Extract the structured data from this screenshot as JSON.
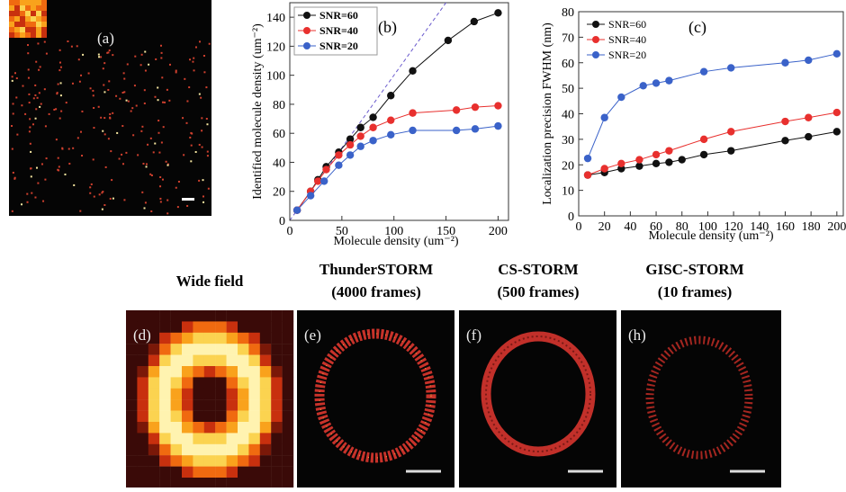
{
  "chart_data": [
    {
      "type": "line",
      "annotation": "(b)",
      "x_label": "Molecule density (um⁻²)",
      "y_label": "Identified molecule density (um⁻²)",
      "xlim": [
        0,
        210
      ],
      "xticks": [
        0,
        50,
        100,
        150,
        200
      ],
      "ylim": [
        0,
        150
      ],
      "yticks": [
        0,
        20,
        40,
        60,
        80,
        100,
        120,
        140
      ],
      "legend": "upper left",
      "legend_frame": true,
      "legend_bold": true,
      "series": [
        {
          "name": "SNR=60",
          "color": "#111111",
          "x": [
            7,
            20,
            27,
            35,
            47,
            58,
            68,
            80,
            97,
            118,
            152,
            177,
            200
          ],
          "values": [
            7,
            20,
            28,
            37,
            47,
            56,
            64,
            71,
            86,
            103,
            124,
            137,
            143
          ]
        },
        {
          "name": "SNR=40",
          "color": "#e8302e",
          "x": [
            7,
            20,
            27,
            35,
            47,
            58,
            68,
            80,
            97,
            118,
            160,
            178,
            200
          ],
          "values": [
            7,
            20,
            27,
            35,
            45,
            52,
            58,
            64,
            69,
            74,
            76,
            78,
            79
          ]
        },
        {
          "name": "SNR=20",
          "color": "#3a62c9",
          "x": [
            7,
            20,
            33,
            47,
            58,
            68,
            80,
            97,
            118,
            160,
            178,
            200
          ],
          "values": [
            7,
            17,
            27,
            38,
            45,
            51,
            55,
            59,
            62,
            62,
            63,
            65
          ]
        }
      ]
    },
    {
      "type": "line",
      "annotation": "(c)",
      "x_label": "Molecule density (um⁻²)",
      "y_label": "Localization precision FWHM (nm)",
      "xlim": [
        0,
        205
      ],
      "xticks": [
        0,
        20,
        40,
        60,
        80,
        100,
        120,
        140,
        160,
        180,
        200
      ],
      "ylim": [
        0,
        80
      ],
      "yticks": [
        0,
        10,
        20,
        30,
        40,
        50,
        60,
        70,
        80
      ],
      "legend": "upper left",
      "legend_frame": false,
      "legend_bold": false,
      "series": [
        {
          "name": "SNR=60",
          "color": "#111111",
          "x": [
            7,
            20,
            33,
            47,
            60,
            70,
            80,
            97,
            118,
            160,
            178,
            200
          ],
          "values": [
            16,
            17,
            18.5,
            19.5,
            20.5,
            21,
            22,
            24,
            25.5,
            29.5,
            31,
            33
          ]
        },
        {
          "name": "SNR=40",
          "color": "#e8302e",
          "x": [
            7,
            20,
            33,
            47,
            60,
            70,
            97,
            118,
            160,
            178,
            200
          ],
          "values": [
            16,
            18.5,
            20.5,
            22,
            24,
            25.5,
            30,
            33,
            37,
            38.5,
            40.5
          ]
        },
        {
          "name": "SNR=20",
          "color": "#3a62c9",
          "x": [
            7,
            20,
            33,
            50,
            60,
            70,
            97,
            118,
            160,
            178,
            200
          ],
          "values": [
            22.5,
            38.5,
            46.5,
            51,
            52,
            53,
            56.5,
            58,
            60,
            61,
            63.5
          ]
        }
      ]
    }
  ],
  "panels": {
    "a": "(a)",
    "d": "(d)",
    "e": "(e)",
    "f": "(f)",
    "h": "(h)"
  },
  "titles": {
    "wide": "Wide field",
    "thunder": "ThunderSTORM",
    "thunder_frames": "(4000 frames)",
    "cs": "CS-STORM",
    "cs_frames": "(500 frames)",
    "gisc": "GISC-STORM",
    "gisc_frames": "(10 frames)"
  }
}
